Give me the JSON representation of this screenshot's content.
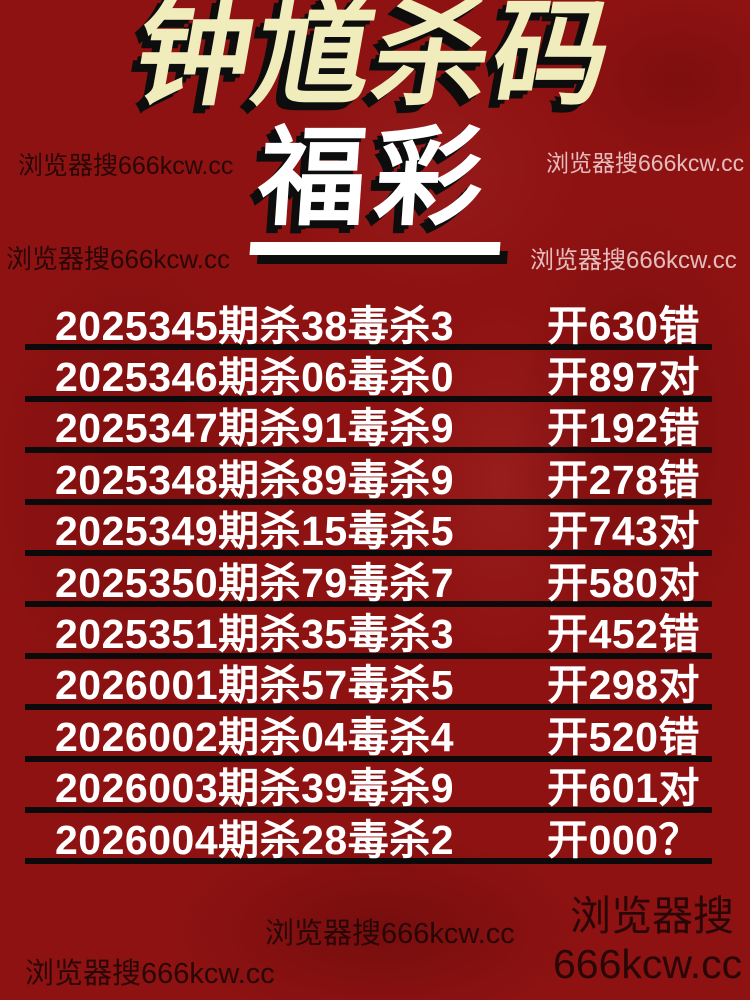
{
  "title": {
    "main": "钟馗杀码",
    "sub": "福彩"
  },
  "colors": {
    "background": "#8e1212",
    "title_text": "#f1ecbb",
    "subtitle_text": "#ffffff",
    "row_text": "#ffffff",
    "divider": "#0b0909",
    "watermark_dark": "#1c0606",
    "watermark_light": "#f8e2e2"
  },
  "watermarks": {
    "top_left": "浏览器搜666kcw.cc",
    "mid_left": "浏览器搜666kcw.cc",
    "top_right": "浏览器搜666kcw.cc",
    "mid_right": "浏览器搜666kcw.cc",
    "bottom_center": "浏览器搜666kcw.cc",
    "bottom_left": "浏览器搜666kcw.cc",
    "bottom_right_line1": "浏览器搜",
    "bottom_right_line2": "666kcw.cc"
  },
  "rows": [
    {
      "left": "2025345期杀38毒杀3",
      "right": "开630错"
    },
    {
      "left": "2025346期杀06毒杀0",
      "right": "开897对"
    },
    {
      "left": "2025347期杀91毒杀9",
      "right": "开192错"
    },
    {
      "left": "2025348期杀89毒杀9",
      "right": "开278错"
    },
    {
      "left": "2025349期杀15毒杀5",
      "right": "开743对"
    },
    {
      "left": "2025350期杀79毒杀7",
      "right": "开580对"
    },
    {
      "left": "2025351期杀35毒杀3",
      "right": "开452错"
    },
    {
      "left": "2026001期杀57毒杀5",
      "right": "开298对"
    },
    {
      "left": "2026002期杀04毒杀4",
      "right": "开520错"
    },
    {
      "left": "2026003期杀39毒杀9",
      "right": "开601对"
    },
    {
      "left": "2026004期杀28毒杀2",
      "right": "开000？"
    }
  ]
}
